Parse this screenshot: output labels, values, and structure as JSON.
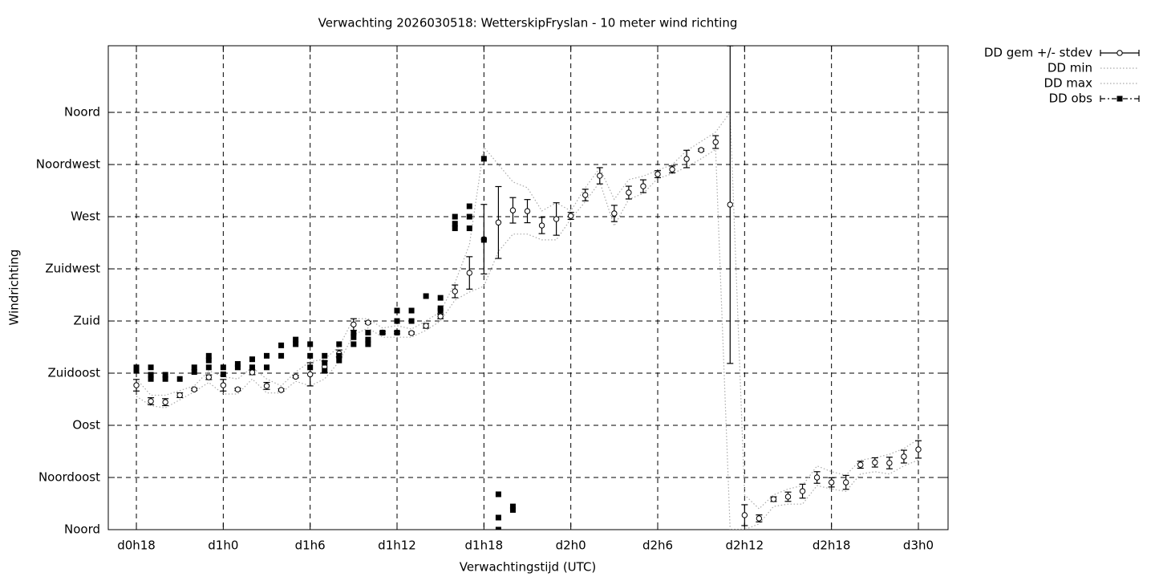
{
  "chart_data": {
    "type": "line",
    "title": "Verwachting 2026030518: WetterskipFryslan - 10 meter wind richting",
    "x_label": "Verwachtingstijd (UTC)",
    "y_label": "Windrichting",
    "xlim": [
      16.06,
      74.05
    ],
    "ylim": [
      0,
      417.5
    ],
    "xticks": [
      {
        "value": 18,
        "label": "d0h18"
      },
      {
        "value": 24,
        "label": "d1h0"
      },
      {
        "value": 30,
        "label": "d1h6"
      },
      {
        "value": 36,
        "label": "d1h12"
      },
      {
        "value": 42,
        "label": "d1h18"
      },
      {
        "value": 48,
        "label": "d2h0"
      },
      {
        "value": 54,
        "label": "d2h6"
      },
      {
        "value": 60,
        "label": "d2h12"
      },
      {
        "value": 66,
        "label": "d2h18"
      },
      {
        "value": 72,
        "label": "d3h0"
      }
    ],
    "yticks": [
      {
        "value": 0,
        "label": "Noord"
      },
      {
        "value": 45,
        "label": "Noordoost"
      },
      {
        "value": 90,
        "label": "Oost"
      },
      {
        "value": 135,
        "label": "Zuidoost"
      },
      {
        "value": 180,
        "label": "Zuid"
      },
      {
        "value": 225,
        "label": "Zuidwest"
      },
      {
        "value": 270,
        "label": "West"
      },
      {
        "value": 315,
        "label": "Noordwest"
      },
      {
        "value": 360,
        "label": "Noord"
      }
    ],
    "grid": true,
    "legend": "outside-top-right",
    "series": [
      {
        "name": "DD gem +/- stdev",
        "style": "errorbars",
        "color": "#000000",
        "x": [
          18,
          19,
          20,
          21,
          22,
          23,
          24,
          25,
          26,
          27,
          28,
          29,
          30,
          31,
          32,
          33,
          34,
          35,
          36,
          37,
          38,
          39,
          40,
          41,
          42,
          43,
          44,
          45,
          46,
          47,
          48,
          49,
          50,
          51,
          52,
          53,
          54,
          55,
          56,
          57,
          58,
          59,
          60,
          61,
          62,
          63,
          64,
          65,
          66,
          67,
          68,
          69,
          70,
          71,
          72
        ],
        "values": [
          124.6,
          110.8,
          110,
          116,
          121,
          131.5,
          124.6,
          121,
          135.7,
          124,
          120.5,
          132,
          134,
          140.5,
          152,
          177,
          178.6,
          170,
          170,
          169.6,
          175.8,
          184,
          205.6,
          221.5,
          250.6,
          265,
          275.5,
          274.8,
          262.4,
          268,
          270.7,
          288.7,
          305.3,
          272.8,
          290.8,
          296.3,
          306.7,
          310.8,
          319.8,
          327.5,
          334.4,
          280.4,
          12.5,
          9.7,
          26.3,
          28.4,
          33.2,
          45,
          40.8,
          40.8,
          56,
          58,
          57.5,
          63,
          69.2
        ],
        "errors": [
          5,
          3,
          3,
          2,
          1,
          2,
          5,
          1,
          2,
          3,
          1,
          1,
          10,
          5,
          3,
          5,
          1,
          1,
          1,
          1,
          2,
          2,
          5.5,
          14,
          30,
          31,
          11,
          10,
          7,
          14,
          3,
          5,
          7,
          7,
          5.5,
          5.5,
          3,
          3,
          7.5,
          1,
          5.5,
          137,
          9,
          3,
          2,
          4,
          6,
          5,
          4,
          6,
          3,
          4,
          5,
          5.5,
          7.5
        ]
      },
      {
        "name": "DD min",
        "style": "dotted",
        "color": "#aaaaaa",
        "x": [
          18,
          19,
          20,
          21,
          22,
          23,
          24,
          25,
          26,
          27,
          28,
          29,
          30,
          31,
          32,
          33,
          34,
          35,
          36,
          37,
          38,
          39,
          40,
          41,
          42,
          43,
          44,
          45,
          46,
          47,
          48,
          49,
          50,
          51,
          52,
          53,
          54,
          55,
          56,
          57,
          58,
          59,
          60,
          61,
          62,
          63,
          64,
          65,
          66,
          67,
          68,
          69,
          70,
          71,
          72
        ],
        "values": [
          115,
          107,
          105,
          112,
          119,
          127,
          117,
          117,
          130,
          118,
          118,
          128,
          124,
          130,
          145,
          168,
          174,
          166,
          166,
          166,
          172,
          180,
          198,
          205,
          210,
          240,
          255,
          255,
          250,
          250,
          268,
          283,
          300,
          262,
          285,
          290,
          303,
          307,
          313,
          320,
          328,
          0,
          0,
          5,
          20,
          22,
          22,
          38,
          35,
          33,
          48,
          50,
          48,
          55,
          60
        ]
      },
      {
        "name": "DD max",
        "style": "dotted",
        "color": "#aaaaaa",
        "x": [
          18,
          19,
          20,
          21,
          22,
          23,
          24,
          25,
          26,
          27,
          28,
          29,
          30,
          31,
          32,
          33,
          34,
          35,
          36,
          37,
          38,
          39,
          40,
          41,
          42,
          43,
          44,
          45,
          46,
          47,
          48,
          49,
          50,
          51,
          52,
          53,
          54,
          55,
          56,
          57,
          58,
          59,
          60,
          61,
          62,
          63,
          64,
          65,
          66,
          67,
          68,
          69,
          70,
          71,
          72
        ],
        "values": [
          130,
          116,
          116,
          120,
          124,
          137,
          132,
          130,
          140,
          130,
          124,
          136,
          145,
          147,
          158,
          182,
          182,
          174,
          176,
          173,
          180,
          188,
          213,
          246,
          330,
          315,
          300,
          295,
          275,
          282,
          275,
          295,
          312,
          285,
          302,
          305,
          310,
          315,
          327,
          335,
          343,
          360,
          30,
          18,
          30,
          35,
          38,
          55,
          50,
          47,
          60,
          62,
          65,
          70,
          78
        ]
      },
      {
        "name": "DD obs",
        "style": "points",
        "color": "#000000",
        "x": [
          18,
          18,
          19,
          19,
          19,
          20,
          20,
          21,
          22,
          22,
          23,
          23,
          23,
          24,
          24,
          25,
          25,
          26,
          26,
          27,
          27,
          28,
          28,
          29,
          29,
          30,
          30,
          30,
          31,
          31,
          31,
          32,
          32,
          32,
          33,
          33,
          33,
          34,
          34,
          34,
          35,
          36,
          36,
          36,
          37,
          37,
          38,
          39,
          39,
          39,
          40,
          40,
          40,
          41,
          41,
          41,
          42,
          42,
          43,
          43,
          43,
          44,
          44
        ],
        "values": [
          140,
          137,
          140,
          133.6,
          130,
          133.6,
          130,
          130,
          140,
          136,
          150,
          146,
          140,
          140,
          134,
          143,
          140,
          147,
          140,
          150,
          140,
          159,
          150,
          164,
          160,
          160,
          150,
          140,
          150,
          144,
          137,
          160,
          150,
          146,
          170,
          166,
          160,
          170,
          164,
          160,
          170,
          189,
          180,
          170,
          189,
          180,
          201.5,
          200,
          191,
          189,
          270,
          264,
          260,
          279,
          270,
          260,
          320,
          250,
          30.5,
          10.4,
          0,
          20,
          17
        ]
      }
    ]
  }
}
